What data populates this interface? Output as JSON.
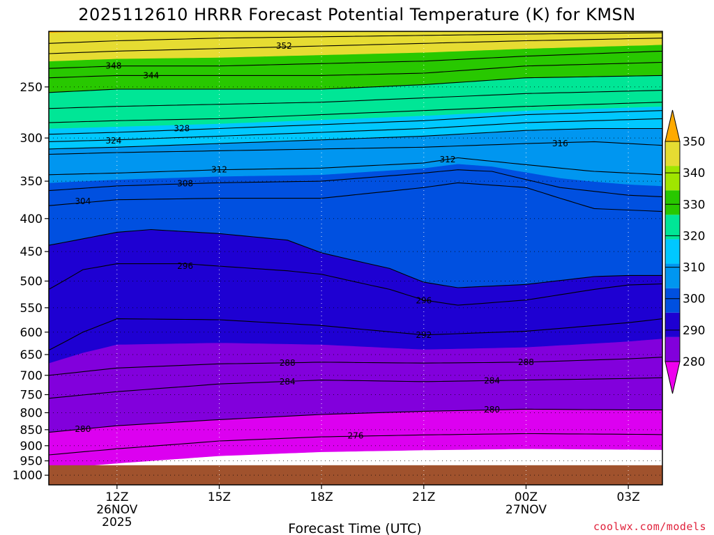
{
  "chart_data": {
    "type": "heatmap",
    "title": "2025112610 HRRR Forecast Potential Temperature (K) for KMSN",
    "xlabel": "Forecast Time (UTC)",
    "credit": "coolwx.com/models",
    "x_range_hours": [
      10.0,
      28.0
    ],
    "y_range_hpa": [
      1035,
      205
    ],
    "y_ticks": [
      {
        "label": "250",
        "p": 250
      },
      {
        "label": "300",
        "p": 300
      },
      {
        "label": "350",
        "p": 350
      },
      {
        "label": "400",
        "p": 400
      },
      {
        "label": "450",
        "p": 450
      },
      {
        "label": "500",
        "p": 500
      },
      {
        "label": "550",
        "p": 550
      },
      {
        "label": "600",
        "p": 600
      },
      {
        "label": "650",
        "p": 650
      },
      {
        "label": "700",
        "p": 700
      },
      {
        "label": "750",
        "p": 750
      },
      {
        "label": "800",
        "p": 800
      },
      {
        "label": "850",
        "p": 850
      },
      {
        "label": "900",
        "p": 900
      },
      {
        "label": "950",
        "p": 950
      },
      {
        "label": "1000",
        "p": 1000
      }
    ],
    "x_ticks": [
      {
        "h": 12,
        "lines": [
          "12Z",
          "26NOV",
          "2025"
        ]
      },
      {
        "h": 15,
        "lines": [
          "15Z"
        ]
      },
      {
        "h": 18,
        "lines": [
          "18Z"
        ]
      },
      {
        "h": 21,
        "lines": [
          "21Z"
        ]
      },
      {
        "h": 24,
        "lines": [
          "00Z",
          "27NOV"
        ]
      },
      {
        "h": 27,
        "lines": [
          "03Z"
        ]
      }
    ],
    "colorbar": {
      "levels": [
        280,
        290,
        300,
        310,
        320,
        330,
        340,
        350
      ],
      "labels": [
        "280",
        "290",
        "300",
        "310",
        "320",
        "330",
        "340",
        "350"
      ],
      "colors": [
        "#ee00ee",
        "#8200dc",
        "#1e00d2",
        "#0050e0",
        "#0096f0",
        "#00c8ff",
        "#00e696",
        "#28c800",
        "#a0e600",
        "#e6dc32",
        "#ffaa00"
      ]
    },
    "fill_ranges": [
      {
        "lo": 272,
        "hi": 280,
        "color": "#dc00f0"
      },
      {
        "lo": 280,
        "hi": 290,
        "color": "#8200dc"
      },
      {
        "lo": 290,
        "hi": 300,
        "color": "#1e00d2"
      },
      {
        "lo": 300,
        "hi": 310,
        "color": "#0050e0"
      },
      {
        "lo": 310,
        "hi": 320,
        "color": "#0096f0"
      },
      {
        "lo": 320,
        "hi": 330,
        "color": "#00c8ff"
      },
      {
        "lo": 330,
        "hi": 340,
        "color": "#00e696"
      },
      {
        "lo": 340,
        "hi": 350,
        "color": "#28c800"
      },
      {
        "lo": 350,
        "hi": 360,
        "color": "#e6dc32"
      },
      {
        "lo": 360,
        "hi": 372,
        "color": "#ffaa00"
      }
    ],
    "ground": {
      "color": "#a0522d",
      "top_hpa": 965
    },
    "isentropes": [
      {
        "theta": 276,
        "label": "276",
        "pts": [
          [
            10,
            930
          ],
          [
            12,
            910
          ],
          [
            15,
            885
          ],
          [
            18,
            872
          ],
          [
            21,
            866
          ],
          [
            24,
            862
          ],
          [
            27,
            864
          ],
          [
            28,
            865
          ]
        ]
      },
      {
        "theta": 280,
        "label": "280",
        "pts": [
          [
            10,
            858
          ],
          [
            11,
            848
          ],
          [
            12,
            838
          ],
          [
            15,
            820
          ],
          [
            18,
            805
          ],
          [
            21,
            796
          ],
          [
            24,
            790
          ],
          [
            27,
            792
          ],
          [
            28,
            792
          ]
        ]
      },
      {
        "theta": 284,
        "label": "284",
        "pts": [
          [
            10,
            760
          ],
          [
            12,
            742
          ],
          [
            15,
            722
          ],
          [
            18,
            712
          ],
          [
            21,
            716
          ],
          [
            24,
            712
          ],
          [
            27,
            708
          ],
          [
            28,
            706
          ]
        ]
      },
      {
        "theta": 288,
        "label": "288",
        "pts": [
          [
            10,
            700
          ],
          [
            12,
            682
          ],
          [
            15,
            672
          ],
          [
            18,
            668
          ],
          [
            21,
            670
          ],
          [
            24,
            668
          ],
          [
            27,
            660
          ],
          [
            28,
            656
          ]
        ]
      },
      {
        "theta": 292,
        "label": "292",
        "pts": [
          [
            10,
            640
          ],
          [
            11,
            600
          ],
          [
            12,
            572
          ],
          [
            15,
            574
          ],
          [
            18,
            586
          ],
          [
            21,
            606
          ],
          [
            24,
            598
          ],
          [
            27,
            580
          ],
          [
            28,
            572
          ]
        ]
      },
      {
        "theta": 296,
        "label": "296",
        "pts": [
          [
            10,
            515
          ],
          [
            11,
            480
          ],
          [
            12,
            470
          ],
          [
            14,
            470
          ],
          [
            17,
            482
          ],
          [
            18,
            488
          ],
          [
            20,
            515
          ],
          [
            21,
            535
          ],
          [
            22,
            545
          ],
          [
            24,
            535
          ],
          [
            26,
            515
          ],
          [
            27,
            507
          ],
          [
            28,
            505
          ]
        ]
      },
      {
        "theta": 300,
        "label": "300",
        "pts": [
          [
            10,
            440
          ],
          [
            11,
            430
          ],
          [
            12,
            420
          ],
          [
            13,
            416
          ],
          [
            15,
            422
          ],
          [
            17,
            432
          ],
          [
            18,
            452
          ],
          [
            20,
            478
          ],
          [
            21,
            502
          ],
          [
            22,
            512
          ],
          [
            24,
            506
          ],
          [
            26,
            492
          ],
          [
            27,
            490
          ],
          [
            28,
            490
          ]
        ]
      },
      {
        "theta": 304,
        "label": "304",
        "pts": [
          [
            10,
            382
          ],
          [
            11,
            378
          ],
          [
            12,
            374
          ],
          [
            15,
            372
          ],
          [
            18,
            372
          ],
          [
            21,
            358
          ],
          [
            22,
            352
          ],
          [
            24,
            358
          ],
          [
            25,
            372
          ],
          [
            26,
            386
          ],
          [
            27,
            388
          ],
          [
            28,
            390
          ]
        ]
      },
      {
        "theta": 308,
        "label": "308",
        "pts": [
          [
            10,
            362
          ],
          [
            12,
            356
          ],
          [
            15,
            352
          ],
          [
            18,
            350
          ],
          [
            21,
            340
          ],
          [
            22,
            336
          ],
          [
            23,
            338
          ],
          [
            24,
            348
          ],
          [
            25,
            358
          ],
          [
            27,
            368
          ],
          [
            28,
            370
          ]
        ]
      },
      {
        "theta": 312,
        "label": "312",
        "pts": [
          [
            10,
            342
          ],
          [
            12,
            340
          ],
          [
            15,
            336
          ],
          [
            18,
            334
          ],
          [
            21,
            328
          ],
          [
            22,
            322
          ],
          [
            24,
            330
          ],
          [
            26,
            338
          ],
          [
            28,
            342
          ]
        ]
      },
      {
        "theta": 316,
        "label": "316",
        "pts": [
          [
            10,
            318
          ],
          [
            12,
            316
          ],
          [
            15,
            314
          ],
          [
            18,
            312
          ],
          [
            21,
            310
          ],
          [
            24,
            306
          ],
          [
            26,
            304
          ],
          [
            28,
            308
          ]
        ]
      },
      {
        "theta": 320,
        "label": "320",
        "pts": [
          [
            10,
            312
          ],
          [
            12,
            310
          ],
          [
            15,
            306
          ],
          [
            18,
            302
          ],
          [
            21,
            298
          ],
          [
            24,
            292
          ],
          [
            26,
            290
          ],
          [
            28,
            290
          ]
        ]
      },
      {
        "theta": 324,
        "label": "324",
        "pts": [
          [
            10,
            304
          ],
          [
            12,
            302
          ],
          [
            15,
            298
          ],
          [
            18,
            294
          ],
          [
            21,
            290
          ],
          [
            24,
            284
          ],
          [
            28,
            280
          ]
        ]
      },
      {
        "theta": 328,
        "label": "328",
        "pts": [
          [
            10,
            296
          ],
          [
            12,
            294
          ],
          [
            15,
            290
          ],
          [
            18,
            286
          ],
          [
            21,
            282
          ],
          [
            24,
            276
          ],
          [
            28,
            272
          ]
        ]
      },
      {
        "theta": 332,
        "label": "332",
        "pts": [
          [
            10,
            284
          ],
          [
            12,
            282
          ],
          [
            15,
            280
          ],
          [
            18,
            276
          ],
          [
            21,
            272
          ],
          [
            24,
            268
          ],
          [
            28,
            264
          ]
        ]
      },
      {
        "theta": 336,
        "label": "336",
        "pts": [
          [
            10,
            270
          ],
          [
            12,
            268
          ],
          [
            15,
            266
          ],
          [
            18,
            264
          ],
          [
            21,
            260
          ],
          [
            24,
            256
          ],
          [
            28,
            253
          ]
        ]
      },
      {
        "theta": 340,
        "label": "340",
        "pts": [
          [
            10,
            255
          ],
          [
            12,
            252
          ],
          [
            15,
            252
          ],
          [
            18,
            252
          ],
          [
            21,
            248
          ],
          [
            24,
            242
          ],
          [
            28,
            240
          ]
        ]
      },
      {
        "theta": 344,
        "label": "344",
        "pts": [
          [
            10,
            242
          ],
          [
            12,
            240
          ],
          [
            15,
            240
          ],
          [
            18,
            240
          ],
          [
            21,
            238
          ],
          [
            24,
            232
          ],
          [
            28,
            229
          ]
        ]
      },
      {
        "theta": 348,
        "label": "348",
        "pts": [
          [
            10,
            234
          ],
          [
            12,
            232
          ],
          [
            15,
            232
          ],
          [
            18,
            230
          ],
          [
            21,
            228
          ],
          [
            24,
            224
          ],
          [
            28,
            220
          ]
        ]
      },
      {
        "theta": 352,
        "label": "352",
        "pts": [
          [
            10,
            222
          ],
          [
            12,
            220
          ],
          [
            15,
            218
          ],
          [
            18,
            216
          ],
          [
            21,
            214
          ],
          [
            24,
            212
          ],
          [
            28,
            210
          ]
        ]
      },
      {
        "theta": 356,
        "label": "356",
        "pts": [
          [
            10,
            214
          ],
          [
            12,
            212
          ],
          [
            15,
            210
          ],
          [
            18,
            209
          ],
          [
            21,
            208
          ],
          [
            24,
            207
          ],
          [
            28,
            206
          ]
        ]
      }
    ],
    "contour_labels": [
      {
        "text": "352",
        "h": 16.9,
        "p": 216
      },
      {
        "text": "348",
        "h": 11.9,
        "p": 232
      },
      {
        "text": "344",
        "h": 13.0,
        "p": 240
      },
      {
        "text": "328",
        "h": 13.9,
        "p": 290
      },
      {
        "text": "324",
        "h": 11.9,
        "p": 303
      },
      {
        "text": "316",
        "h": 25.0,
        "p": 306
      },
      {
        "text": "312",
        "h": 21.7,
        "p": 324
      },
      {
        "text": "312",
        "h": 15.0,
        "p": 336
      },
      {
        "text": "308",
        "h": 14.0,
        "p": 353
      },
      {
        "text": "304",
        "h": 11.0,
        "p": 376
      },
      {
        "text": "296",
        "h": 14.0,
        "p": 474
      },
      {
        "text": "296",
        "h": 21.0,
        "p": 536
      },
      {
        "text": "292",
        "h": 21.0,
        "p": 606
      },
      {
        "text": "288",
        "h": 17.0,
        "p": 670
      },
      {
        "text": "288",
        "h": 24.0,
        "p": 668
      },
      {
        "text": "284",
        "h": 17.0,
        "p": 716
      },
      {
        "text": "284",
        "h": 23.0,
        "p": 714
      },
      {
        "text": "280",
        "h": 23.0,
        "p": 791
      },
      {
        "text": "276",
        "h": 19.0,
        "p": 868
      },
      {
        "text": "280",
        "h": 11.0,
        "p": 848
      }
    ]
  }
}
